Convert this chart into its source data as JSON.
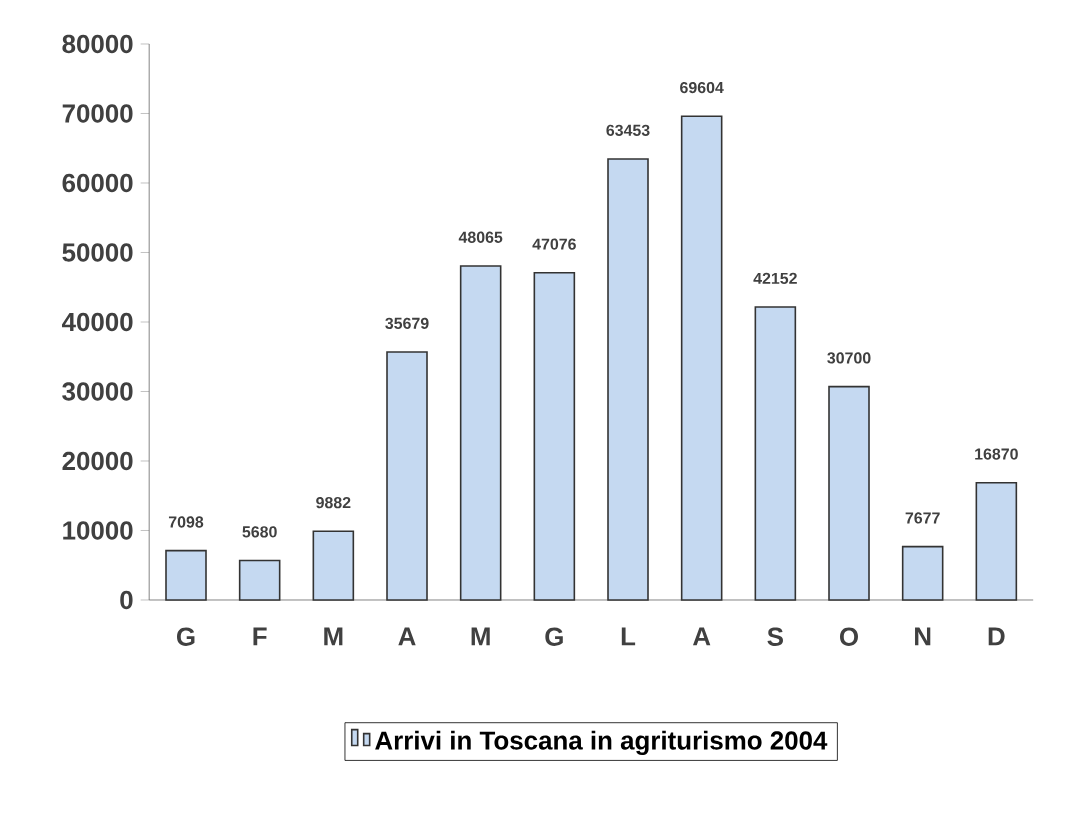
{
  "chart_data": {
    "type": "bar",
    "categories": [
      "G",
      "F",
      "M",
      "A",
      "M",
      "G",
      "L",
      "A",
      "S",
      "O",
      "N",
      "D"
    ],
    "series": [
      {
        "name": "Arrivi in Toscana in agriturismo 2004",
        "color": "#c5d9f1",
        "values": [
          7098,
          5680,
          9882,
          35679,
          48065,
          47076,
          63453,
          69604,
          42152,
          30700,
          7677,
          16870
        ]
      }
    ],
    "ylim": [
      0,
      80000
    ],
    "yticks": [
      0,
      10000,
      20000,
      30000,
      40000,
      50000,
      60000,
      70000,
      80000
    ],
    "data_labels": true,
    "grid": false,
    "legend": "bottom"
  }
}
